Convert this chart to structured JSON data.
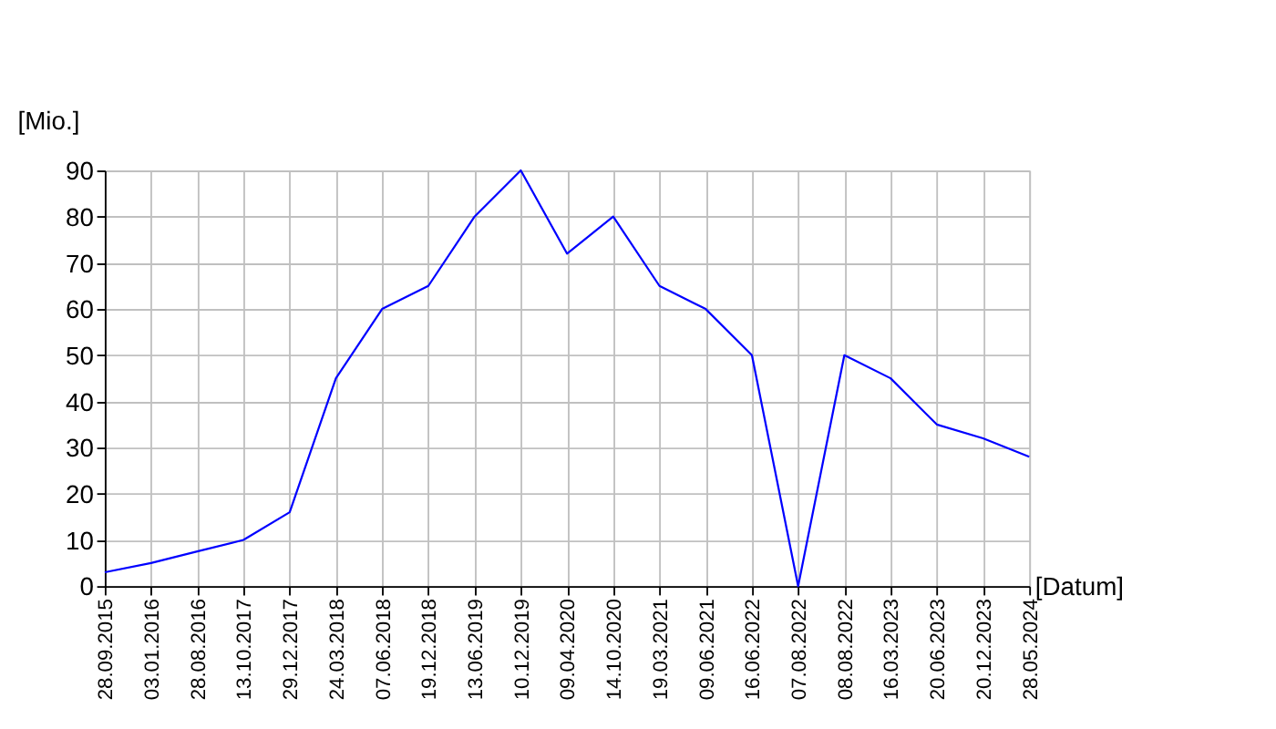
{
  "chart_data": {
    "type": "line",
    "xlabel": "[Datum]",
    "ylabel": "[Mio.]",
    "categories": [
      "28.09.2015",
      "03.01.2016",
      "28.08.2016",
      "13.10.2017",
      "29.12.2017",
      "24.03.2018",
      "07.06.2018",
      "19.12.2018",
      "13.06.2019",
      "10.12.2019",
      "09.04.2020",
      "14.10.2020",
      "19.03.2021",
      "09.06.2021",
      "16.06.2022",
      "07.08.2022",
      "08.08.2022",
      "16.03.2023",
      "20.06.2023",
      "20.12.2023",
      "28.05.2024"
    ],
    "series": [
      {
        "color": "#0000ff",
        "values": [
          3,
          5,
          7.5,
          10,
          16,
          45,
          60,
          65,
          80,
          90,
          72,
          80,
          65,
          60,
          50,
          0,
          50,
          45,
          35,
          32,
          28
        ]
      }
    ],
    "ylim": [
      0,
      90
    ],
    "yticks": [
      0,
      10,
      20,
      30,
      40,
      50,
      60,
      70,
      80,
      90
    ],
    "grid": true,
    "marker": "none",
    "line_style": "solid"
  }
}
